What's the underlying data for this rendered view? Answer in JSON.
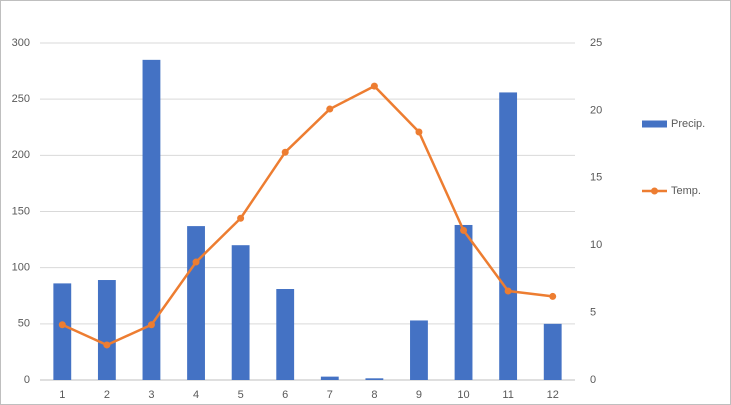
{
  "chart_data": {
    "type": "combo",
    "categories": [
      1,
      2,
      3,
      4,
      5,
      6,
      7,
      8,
      9,
      10,
      11,
      12
    ],
    "series": [
      {
        "name": "Precip.",
        "type": "bar",
        "color": "#4472c4",
        "values": [
          86,
          89,
          285,
          137,
          120,
          81,
          3,
          1.5,
          53,
          138,
          256,
          50
        ]
      },
      {
        "name": "Temp.",
        "type": "line",
        "axis": "y2",
        "color": "#ed7d31",
        "values": [
          4.1,
          2.6,
          4.1,
          8.75,
          12.0,
          16.9,
          20.1,
          21.8,
          18.4,
          11.1,
          6.6,
          6.2
        ]
      }
    ],
    "ylim": [
      0,
      300
    ],
    "yticks": [
      0,
      50,
      100,
      150,
      200,
      250,
      300
    ],
    "y2lim": [
      0,
      25
    ],
    "y2ticks": [
      0,
      5,
      10,
      15,
      20,
      25
    ],
    "grid": true,
    "legend": "right"
  }
}
